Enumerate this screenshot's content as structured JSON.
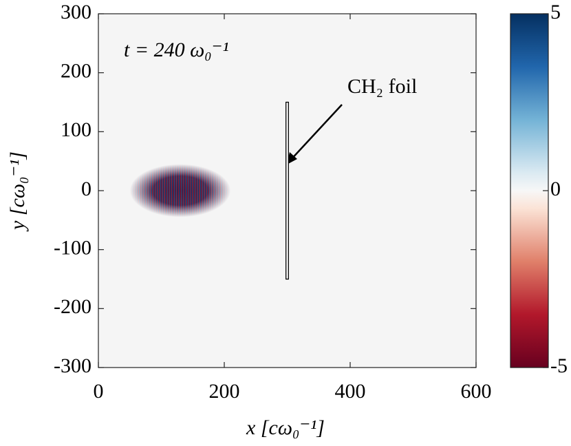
{
  "chart_data": {
    "type": "field",
    "x_label": "x [cω₀⁻¹]",
    "y_label": "y [cω₀⁻¹]",
    "xlim": [
      0,
      600
    ],
    "ylim": [
      -300,
      300
    ],
    "xticks": [
      0,
      200,
      400,
      600
    ],
    "yticks": [
      -300,
      -200,
      -100,
      0,
      100,
      200,
      300
    ],
    "clim": [
      -5,
      5
    ],
    "cticks": [
      -5,
      0,
      5
    ],
    "annotations": [
      "t = 240 ω₀⁻¹",
      "CH₂ foil"
    ],
    "pulse": {
      "x": [
        50,
        210
      ],
      "y": [
        -45,
        45
      ]
    },
    "foil": {
      "x": [
        298,
        302
      ],
      "y": [
        -150,
        150
      ]
    },
    "background": "#f5f5f5"
  }
}
